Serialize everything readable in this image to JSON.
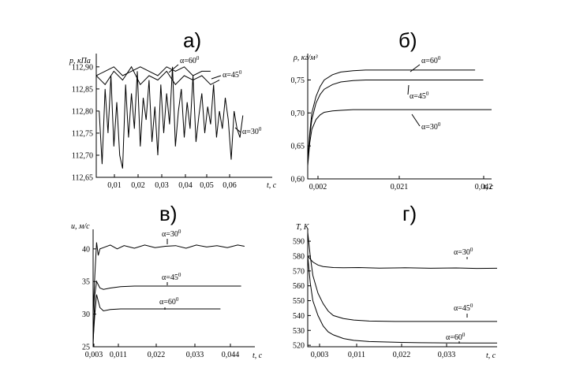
{
  "chart_data": [
    {
      "type": "line",
      "panel_label": "а)",
      "ylabel": "p, кПа",
      "xlabel": "t, с",
      "x_ticks": [
        "0,01",
        "0,02",
        "0,03",
        "0,04",
        "0,05",
        "0,06"
      ],
      "y_ticks": [
        "112,65",
        "112,70",
        "112,75",
        "112,80",
        "112,85",
        "112,90"
      ],
      "xlim": [
        0.005,
        0.065
      ],
      "ylim": [
        112.65,
        112.93
      ],
      "series": [
        {
          "name": "α=60°",
          "x": [
            0.005,
            0.008,
            0.011,
            0.014,
            0.017,
            0.02,
            0.023,
            0.026,
            0.029,
            0.032,
            0.035,
            0.038,
            0.041,
            0.044
          ],
          "values": [
            112.88,
            112.89,
            112.9,
            112.88,
            112.89,
            112.9,
            112.89,
            112.88,
            112.9,
            112.89,
            112.9,
            112.88,
            112.89,
            112.89
          ]
        },
        {
          "name": "α=45°",
          "x": [
            0.005,
            0.008,
            0.011,
            0.014,
            0.017,
            0.02,
            0.023,
            0.026,
            0.029,
            0.032,
            0.035,
            0.038,
            0.041,
            0.044,
            0.047
          ],
          "values": [
            112.88,
            112.86,
            112.89,
            112.87,
            112.9,
            112.86,
            112.88,
            112.87,
            112.89,
            112.86,
            112.88,
            112.87,
            112.88,
            112.86,
            112.87
          ]
        },
        {
          "name": "α=30°",
          "x": [
            0.006,
            0.007,
            0.008,
            0.009,
            0.01,
            0.011,
            0.012,
            0.013,
            0.014,
            0.015,
            0.016,
            0.017,
            0.018,
            0.019,
            0.02,
            0.021,
            0.022,
            0.023,
            0.024,
            0.025,
            0.026,
            0.027,
            0.028,
            0.029,
            0.03,
            0.031,
            0.032,
            0.033,
            0.034,
            0.035,
            0.036,
            0.037,
            0.038,
            0.039,
            0.04,
            0.041,
            0.042,
            0.043,
            0.044,
            0.045,
            0.046,
            0.047,
            0.048,
            0.049,
            0.05,
            0.051,
            0.052,
            0.053,
            0.054,
            0.055
          ],
          "values": [
            112.8,
            112.68,
            112.85,
            112.75,
            112.88,
            112.72,
            112.82,
            112.7,
            112.67,
            112.86,
            112.74,
            112.84,
            112.76,
            112.89,
            112.72,
            112.83,
            112.78,
            112.87,
            112.73,
            112.81,
            112.7,
            112.86,
            112.75,
            112.84,
            112.77,
            112.9,
            112.72,
            112.8,
            112.85,
            112.74,
            112.82,
            112.76,
            112.88,
            112.73,
            112.79,
            112.84,
            112.75,
            112.81,
            112.77,
            112.86,
            112.74,
            112.8,
            112.76,
            112.83,
            112.78,
            112.69,
            112.8,
            112.76,
            112.74,
            112.79
          ]
        }
      ],
      "annotations": [
        "α=60°",
        "α=45°",
        "α=30°"
      ]
    },
    {
      "type": "line",
      "panel_label": "б)",
      "ylabel": "ρ, кг/м³",
      "xlabel": "t, с",
      "x_ticks": [
        "0,002",
        "0,021",
        "0,042"
      ],
      "y_ticks": [
        "0,60",
        "0,65",
        "0,70",
        "0,75"
      ],
      "xlim": [
        0.002,
        0.0465
      ],
      "ylim": [
        0.6,
        0.79
      ],
      "series": [
        {
          "name": "α=60°",
          "x": [
            0.002,
            0.0025,
            0.003,
            0.004,
            0.005,
            0.006,
            0.008,
            0.01,
            0.013,
            0.016,
            0.02,
            0.03,
            0.04,
            0.0425
          ],
          "values": [
            0.63,
            0.67,
            0.7,
            0.725,
            0.74,
            0.75,
            0.758,
            0.762,
            0.764,
            0.765,
            0.765,
            0.765,
            0.765,
            0.765
          ]
        },
        {
          "name": "α=45°",
          "x": [
            0.002,
            0.0025,
            0.003,
            0.004,
            0.005,
            0.006,
            0.008,
            0.01,
            0.013,
            0.016,
            0.02,
            0.03,
            0.04,
            0.0445
          ],
          "values": [
            0.625,
            0.665,
            0.69,
            0.715,
            0.728,
            0.736,
            0.743,
            0.747,
            0.749,
            0.75,
            0.75,
            0.75,
            0.75,
            0.75
          ]
        },
        {
          "name": "α=30°",
          "x": [
            0.002,
            0.0025,
            0.003,
            0.004,
            0.005,
            0.006,
            0.008,
            0.01,
            0.013,
            0.02,
            0.03,
            0.04,
            0.0465
          ],
          "values": [
            0.62,
            0.655,
            0.675,
            0.69,
            0.697,
            0.701,
            0.703,
            0.704,
            0.705,
            0.705,
            0.705,
            0.705,
            0.705
          ]
        }
      ],
      "annotations": [
        "α=60°",
        "α=45°",
        "α=30°"
      ]
    },
    {
      "type": "line",
      "panel_label": "в)",
      "ylabel": "u, м/с",
      "xlabel": "t, с",
      "x_ticks": [
        "0,003",
        "0,011",
        "0,022",
        "0,033",
        "0,044"
      ],
      "y_ticks": [
        "25",
        "30",
        "35",
        "40"
      ],
      "xlim": [
        0.003,
        0.05
      ],
      "ylim": [
        25,
        43
      ],
      "series": [
        {
          "name": "α=30°",
          "x": [
            0.003,
            0.0035,
            0.004,
            0.0045,
            0.005,
            0.006,
            0.008,
            0.01,
            0.012,
            0.015,
            0.018,
            0.021,
            0.024,
            0.027,
            0.03,
            0.033,
            0.036,
            0.039,
            0.042,
            0.045,
            0.047
          ],
          "values": [
            30,
            36,
            41,
            39,
            40,
            40.2,
            40.6,
            40,
            40.5,
            40.1,
            40.6,
            40.2,
            40.4,
            40.5,
            40.1,
            40.6,
            40.3,
            40.5,
            40.2,
            40.6,
            40.4
          ]
        },
        {
          "name": "α=45°",
          "x": [
            0.003,
            0.0035,
            0.004,
            0.005,
            0.006,
            0.008,
            0.011,
            0.015,
            0.02,
            0.03,
            0.04,
            0.046
          ],
          "values": [
            25,
            33,
            35,
            34,
            33.8,
            34,
            34.2,
            34.3,
            34.3,
            34.3,
            34.3,
            34.3
          ]
        },
        {
          "name": "α=60°",
          "x": [
            0.003,
            0.0035,
            0.004,
            0.0045,
            0.005,
            0.006,
            0.008,
            0.011,
            0.015,
            0.02,
            0.03,
            0.04
          ],
          "values": [
            26,
            30,
            33,
            32,
            31,
            30.5,
            30.7,
            30.8,
            30.8,
            30.8,
            30.8,
            30.8
          ]
        }
      ],
      "annotations": [
        "α=30°",
        "α=45°",
        "α=60°"
      ]
    },
    {
      "type": "line",
      "panel_label": "г)",
      "ylabel": "T, K",
      "xlabel": "t, с",
      "x_ticks": [
        "0,003",
        "0,011",
        "0,022",
        "0,033"
      ],
      "y_ticks": [
        "520",
        "530",
        "540",
        "550",
        "560",
        "570",
        "580",
        "590"
      ],
      "xlim": [
        0.003,
        0.04
      ],
      "ylim": [
        519,
        598
      ],
      "series": [
        {
          "name": "α=30°",
          "x": [
            0.003,
            0.0035,
            0.004,
            0.005,
            0.006,
            0.008,
            0.01,
            0.013,
            0.017,
            0.022,
            0.027,
            0.032,
            0.036,
            0.04
          ],
          "values": [
            580,
            578,
            576,
            574,
            573,
            572.3,
            572.1,
            572.3,
            571.9,
            572.1,
            571.8,
            572,
            571.7,
            571.8
          ]
        },
        {
          "name": "α=45°",
          "x": [
            0.003,
            0.0035,
            0.004,
            0.005,
            0.006,
            0.007,
            0.008,
            0.01,
            0.012,
            0.015,
            0.02,
            0.025,
            0.03,
            0.035,
            0.04
          ],
          "values": [
            596,
            580,
            567,
            555,
            548,
            543,
            540,
            538,
            537,
            536.3,
            536,
            536,
            536,
            536,
            536
          ]
        },
        {
          "name": "α=60°",
          "x": [
            0.003,
            0.0035,
            0.004,
            0.005,
            0.006,
            0.007,
            0.008,
            0.01,
            0.012,
            0.015,
            0.02,
            0.025,
            0.03,
            0.035,
            0.04
          ],
          "values": [
            580,
            562,
            550,
            540,
            533,
            529,
            527,
            524.5,
            523.3,
            522.5,
            522,
            521.7,
            521.6,
            521.5,
            521.5
          ]
        }
      ],
      "annotations": [
        "α=30°",
        "α=45°",
        "α=60°"
      ]
    }
  ]
}
